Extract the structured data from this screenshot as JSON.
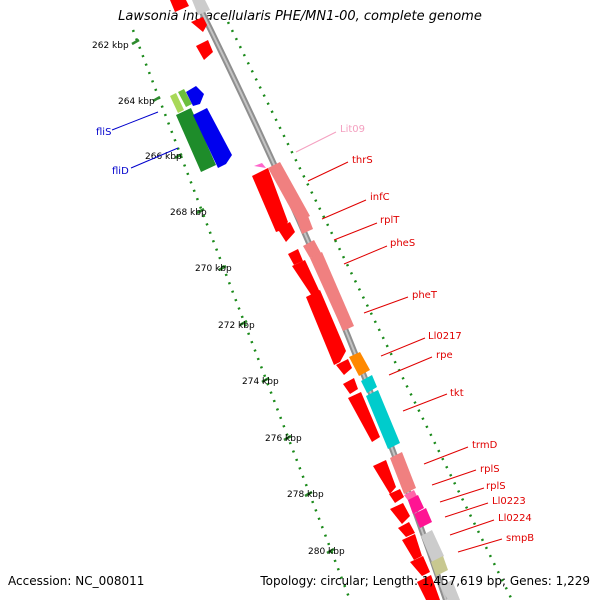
{
  "title": "Lawsonia intracellularis PHE/MN1-00, complete genome",
  "accession": "Accession: NC_008011",
  "topology": "Topology: circular; Length: 1,457,619 bp; Genes: 1,229",
  "colors": {
    "backbone": "#9a9a9a",
    "tick_major": "#2e8b2e",
    "tick_dots": "#1a8a1a",
    "label_red": "#e00000",
    "label_blue": "#0000cc",
    "label_pink": "#f4a0c0"
  },
  "scale_labels": [
    "262 kbp",
    "264 kbp",
    "266 kbp",
    "268 kbp",
    "270 kbp",
    "272 kbp",
    "274 kbp",
    "276 kbp",
    "278 kbp",
    "280 kbp"
  ],
  "gene_labels_left": [
    "fliS",
    "fliD"
  ],
  "gene_labels_right": [
    "Lit09",
    "thrS",
    "infC",
    "rplT",
    "pheS",
    "pheT",
    "Ll0217",
    "rpe",
    "tkt",
    "trmD",
    "rplS",
    "rplS",
    "Ll0223",
    "Ll0224",
    "smpB"
  ]
}
